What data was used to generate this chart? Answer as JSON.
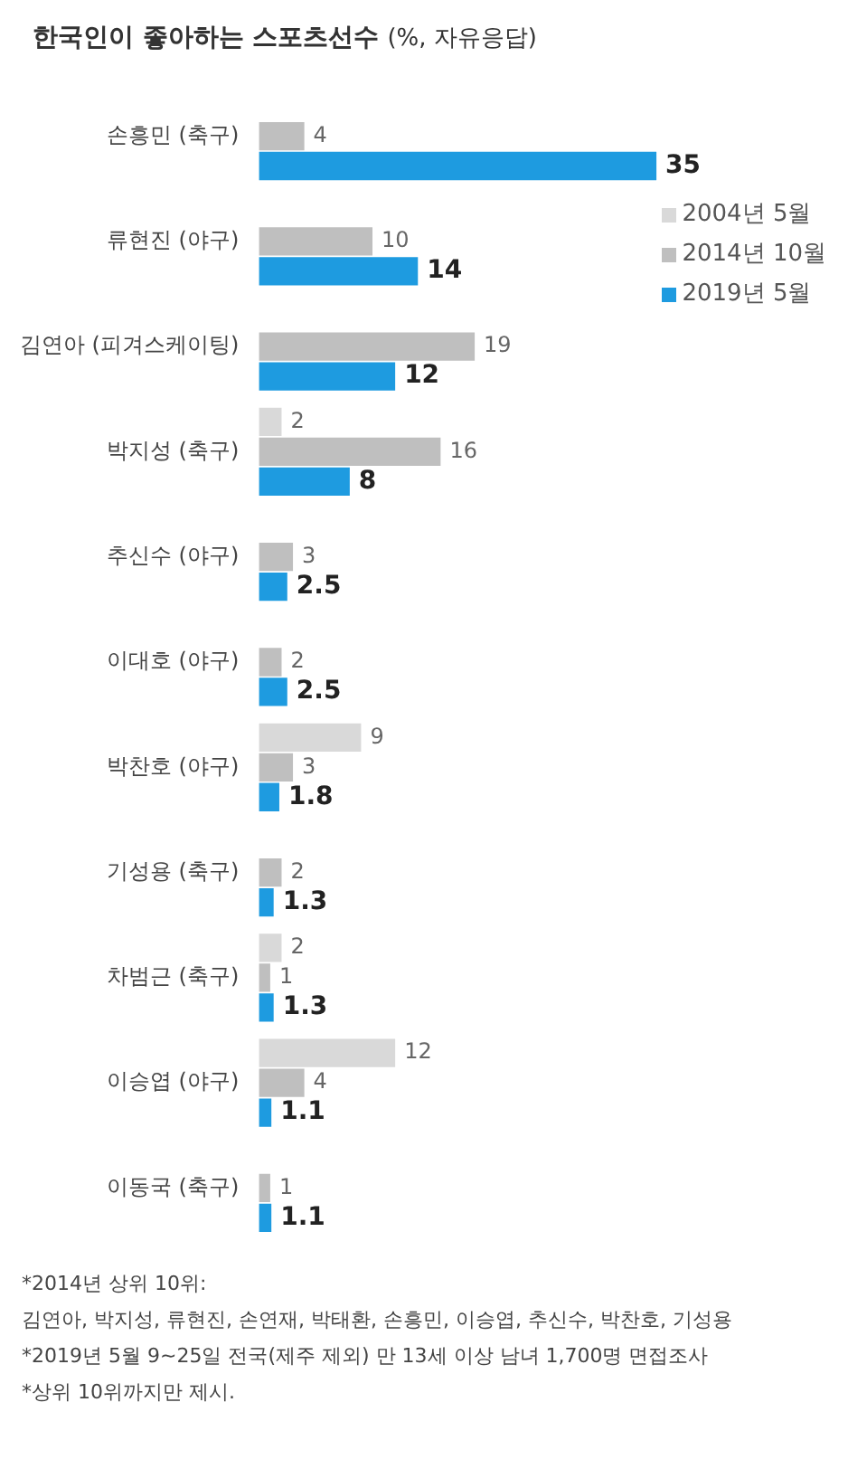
{
  "chart_data": {
    "type": "bar",
    "orientation": "horizontal",
    "title": "한국인이 좋아하는 스포츠선수",
    "subtitle": "(%, 자유응답)",
    "categories": [
      "손흥민 (축구)",
      "류현진 (야구)",
      "김연아 (피겨스케이팅)",
      "박지성 (축구)",
      "추신수 (야구)",
      "이대호 (야구)",
      "박찬호 (야구)",
      "기성용 (축구)",
      "차범근 (축구)",
      "이승엽 (야구)",
      "이동국 (축구)"
    ],
    "series": [
      {
        "name": "2004년 5월",
        "color": "#d9d9d9",
        "values": [
          null,
          null,
          null,
          2,
          null,
          null,
          9,
          null,
          2,
          12,
          null
        ]
      },
      {
        "name": "2014년 10월",
        "color": "#bfbfbf",
        "values": [
          4,
          10,
          19,
          16,
          3,
          2,
          3,
          2,
          1,
          4,
          1
        ]
      },
      {
        "name": "2019년 5월",
        "color": "#1e9be0",
        "values": [
          35,
          14,
          12,
          8,
          2.5,
          2.5,
          1.8,
          1.3,
          1.3,
          1.1,
          1.1
        ]
      }
    ],
    "data_labels": true,
    "legend": "top right",
    "annotations": [
      "*2014년 상위 10위:",
      "김연아, 박지성, 류현진, 손연재, 박태환, 손흥민, 이승엽, 추신수, 박찬호, 기성용",
      "*2019년 5월 9~25일 전국(제주 제외) 만 13세 이상 남녀 1,700명 면접조사",
      "*상위 10위까지만 제시."
    ]
  }
}
